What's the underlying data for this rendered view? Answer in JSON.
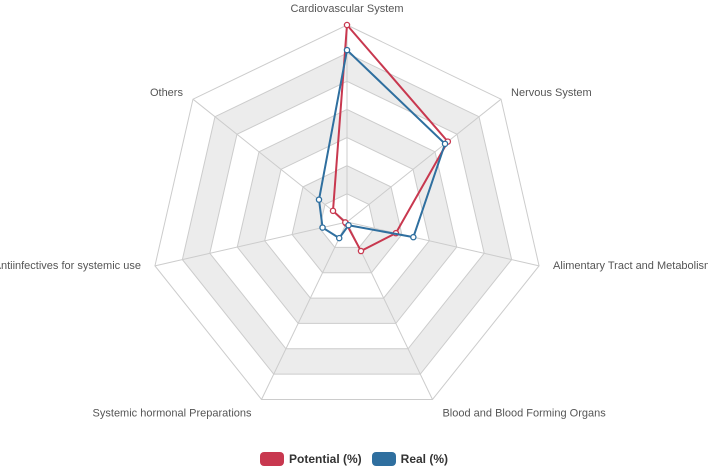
{
  "chart_data": {
    "type": "radar",
    "categories": [
      "Cardiovascular System",
      "Nervous System",
      "Alimentary Tract and Metabolism",
      "Blood and Blood Forming Organs",
      "Systemic hormonal Preparations",
      "Antiinfectives for systemic use",
      "Others"
    ],
    "series": [
      {
        "name": "Potential (%)",
        "color": "#c8384f",
        "values": [
          55,
          36,
          14,
          9,
          0.5,
          0.5,
          5
        ]
      },
      {
        "name": "Real (%)",
        "color": "#2f6f9f",
        "values": [
          48,
          35,
          19,
          1,
          5,
          7,
          10
        ]
      }
    ],
    "range": [
      0,
      55
    ],
    "rings": 7,
    "grid_colors": [
      "#ffffff",
      "#ececec"
    ],
    "legend_position": "bottom"
  }
}
